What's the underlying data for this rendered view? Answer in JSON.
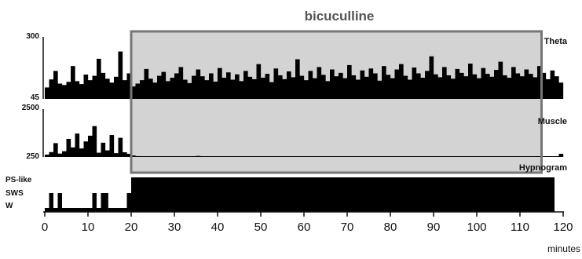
{
  "chart_data": {
    "type": "area",
    "title": "bicuculline",
    "xlabel": "minutes",
    "xlim": [
      0,
      120
    ],
    "x_ticks": [
      "0",
      "10",
      "20",
      "30",
      "40",
      "50",
      "60",
      "70",
      "80",
      "90",
      "100",
      "110",
      "120"
    ],
    "treatment": {
      "label": "bicuculline",
      "start": 20,
      "end": 115,
      "shade_color": "#d3d3d3",
      "border_color": "#777777"
    },
    "panels": [
      {
        "name": "Theta",
        "label": "Theta",
        "ylim": [
          45,
          300
        ],
        "y_ticks": [
          "300",
          "45"
        ],
        "sample_interval_min": 1,
        "series": [
          {
            "name": "Theta",
            "values": [
              92,
              125,
              160,
              108,
              102,
              115,
              180,
              118,
              106,
              145,
              122,
              140,
              210,
              152,
              128,
              112,
              136,
              240,
              122,
              150,
              96,
              108,
              122,
              168,
              128,
              112,
              140,
              156,
              118,
              132,
              150,
              176,
              124,
              110,
              140,
              166,
              138,
              122,
              150,
              116,
              172,
              132,
              154,
              124,
              146,
              118,
              160,
              136,
              126,
              188,
              132,
              148,
              114,
              170,
              142,
              126,
              158,
              134,
              208,
              140,
              122,
              160,
              130,
              176,
              144,
              118,
              166,
              138,
              152,
              130,
              184,
              142,
              124,
              162,
              136,
              170,
              150,
              120,
              180,
              144,
              130,
              166,
              188,
              140,
              124,
              174,
              150,
              132,
              160,
              220,
              146,
              134,
              176,
              142,
              128,
              168,
              152,
              138,
              190,
              146,
              130,
              172,
              148,
              136,
              164,
              198,
              142,
              132,
              176,
              150,
              138,
              166,
              148,
              134,
              180,
              152,
              126,
              162,
              138,
              112
            ]
          }
        ]
      },
      {
        "name": "Muscle",
        "label": "Muscle",
        "ylim": [
          250,
          2500
        ],
        "y_ticks": [
          "2500",
          "250"
        ],
        "sample_interval_min": 1,
        "series": [
          {
            "name": "Muscle",
            "values": [
              360,
              480,
              900,
              410,
              520,
              1100,
              700,
              1350,
              650,
              980,
              1250,
              1700,
              450,
              920,
              560,
              1280,
              430,
              1150,
              470,
              400,
              320,
              290,
              270,
              262,
              258,
              255,
              256,
              255,
              254,
              256,
              255,
              258,
              255,
              256,
              254,
              300,
              255,
              256,
              258,
              255,
              254,
              256,
              255,
              257,
              255,
              256,
              254,
              258,
              256,
              255,
              254,
              262,
              256,
              255,
              257,
              254,
              256,
              255,
              258,
              256,
              255,
              254,
              256,
              257,
              255,
              256,
              254,
              258,
              255,
              256,
              262,
              255,
              257,
              254,
              256,
              255,
              256,
              258,
              255,
              254,
              256,
              255,
              257,
              260,
              255,
              256,
              254,
              258,
              255,
              256,
              254,
              255,
              257,
              256,
              255,
              254,
              256,
              258,
              255,
              256,
              254,
              262,
              256,
              255,
              257,
              254,
              256,
              255,
              258,
              256,
              255,
              254,
              256,
              257,
              255,
              256,
              255,
              258,
              270,
              400
            ]
          }
        ]
      },
      {
        "name": "Hypnogram",
        "label": "Hypnogram",
        "states": [
          "PS-like",
          "SWS",
          "W"
        ],
        "segments": [
          {
            "start": 0,
            "end": 1,
            "state": "W"
          },
          {
            "start": 1,
            "end": 2,
            "state": "SWS"
          },
          {
            "start": 2,
            "end": 3,
            "state": "W"
          },
          {
            "start": 3,
            "end": 4,
            "state": "SWS"
          },
          {
            "start": 4,
            "end": 11,
            "state": "W"
          },
          {
            "start": 11,
            "end": 12,
            "state": "SWS"
          },
          {
            "start": 12,
            "end": 13,
            "state": "W"
          },
          {
            "start": 13,
            "end": 14.7,
            "state": "SWS"
          },
          {
            "start": 14.7,
            "end": 19,
            "state": "W"
          },
          {
            "start": 19,
            "end": 20,
            "state": "SWS"
          },
          {
            "start": 20,
            "end": 118,
            "state": "PS-like"
          }
        ]
      }
    ]
  }
}
